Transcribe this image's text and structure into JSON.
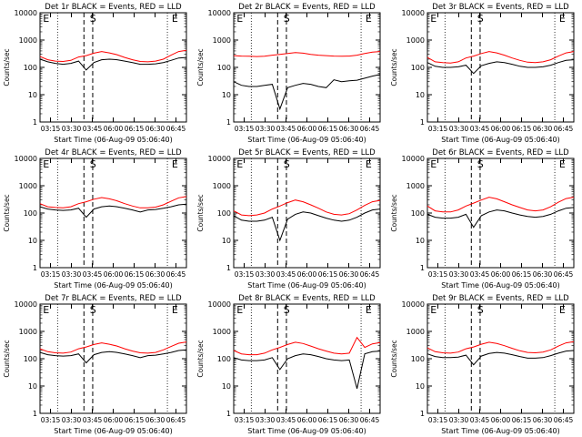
{
  "figure": {
    "xlabel": "Start Time (06-Aug-09 05:06:40)",
    "ylabel": "Counts/sec",
    "x_ticks": [
      "03:15",
      "03:30",
      "03:45",
      "06:00",
      "06:15",
      "06:30",
      "06:45"
    ],
    "y_ticks": [
      "1",
      "10",
      "100",
      "1000",
      "10000"
    ]
  },
  "chart_data": [
    {
      "type": "line",
      "title": "Det 1r BLACK = Events, RED = LLD",
      "scale": "log",
      "ylim": [
        1,
        10000
      ],
      "marks": [
        "E",
        "S",
        "E"
      ],
      "series": [
        {
          "color": "#000000",
          "values": [
            200,
            160,
            140,
            130,
            140,
            170,
            80,
            150,
            190,
            200,
            190,
            170,
            150,
            130,
            130,
            135,
            150,
            180,
            220,
            230
          ]
        },
        {
          "color": "#ff0000",
          "values": [
            250,
            190,
            170,
            165,
            180,
            240,
            270,
            330,
            380,
            340,
            290,
            230,
            190,
            165,
            160,
            170,
            200,
            280,
            380,
            420
          ]
        }
      ]
    },
    {
      "type": "line",
      "title": "Det 2r BLACK = Events, RED = LLD",
      "scale": "log",
      "ylim": [
        1,
        10000
      ],
      "marks": [
        "E",
        "S",
        "E"
      ],
      "series": [
        {
          "color": "#000000",
          "values": [
            30,
            22,
            20,
            20,
            22,
            24,
            3,
            18,
            22,
            26,
            24,
            20,
            18,
            35,
            30,
            32,
            34,
            40,
            48,
            55
          ]
        },
        {
          "color": "#ff0000",
          "values": [
            270,
            260,
            255,
            250,
            255,
            280,
            300,
            320,
            350,
            330,
            300,
            280,
            270,
            260,
            255,
            260,
            280,
            320,
            360,
            380
          ]
        }
      ]
    },
    {
      "type": "line",
      "title": "Det 3r BLACK = Events, RED = LLD",
      "scale": "log",
      "ylim": [
        1,
        10000
      ],
      "marks": [
        "E",
        "S",
        "E"
      ],
      "series": [
        {
          "color": "#000000",
          "values": [
            150,
            110,
            100,
            100,
            105,
            120,
            60,
            115,
            140,
            160,
            150,
            130,
            110,
            100,
            100,
            105,
            120,
            150,
            180,
            190
          ]
        },
        {
          "color": "#ff0000",
          "values": [
            230,
            160,
            150,
            145,
            160,
            220,
            260,
            320,
            380,
            340,
            280,
            220,
            180,
            155,
            150,
            160,
            190,
            260,
            340,
            380
          ]
        }
      ]
    },
    {
      "type": "line",
      "title": "Det 4r BLACK = Events, RED = LLD",
      "scale": "log",
      "ylim": [
        1,
        10000
      ],
      "marks": [
        "E",
        "S",
        "E"
      ],
      "series": [
        {
          "color": "#000000",
          "values": [
            170,
            140,
            130,
            125,
            130,
            150,
            70,
            140,
            170,
            180,
            170,
            150,
            130,
            110,
            130,
            135,
            150,
            170,
            200,
            210
          ]
        },
        {
          "color": "#ff0000",
          "values": [
            220,
            170,
            160,
            155,
            170,
            220,
            260,
            320,
            370,
            330,
            280,
            220,
            180,
            155,
            155,
            165,
            200,
            270,
            360,
            400
          ]
        }
      ]
    },
    {
      "type": "line",
      "title": "Det 5r BLACK = Events, RED = LLD",
      "scale": "log",
      "ylim": [
        1,
        10000
      ],
      "marks": [
        "E",
        "S",
        "E"
      ],
      "series": [
        {
          "color": "#000000",
          "values": [
            80,
            55,
            50,
            50,
            55,
            70,
            10,
            60,
            90,
            110,
            100,
            80,
            65,
            55,
            50,
            55,
            70,
            100,
            130,
            140
          ]
        },
        {
          "color": "#ff0000",
          "values": [
            120,
            85,
            80,
            85,
            100,
            140,
            180,
            240,
            300,
            260,
            200,
            150,
            110,
            90,
            85,
            95,
            130,
            190,
            260,
            290
          ]
        }
      ]
    },
    {
      "type": "line",
      "title": "Det 6r BLACK = Events, RED = LLD",
      "scale": "log",
      "ylim": [
        1,
        10000
      ],
      "marks": [
        "E",
        "S",
        "E"
      ],
      "series": [
        {
          "color": "#000000",
          "values": [
            90,
            70,
            65,
            65,
            70,
            90,
            30,
            80,
            110,
            130,
            120,
            100,
            85,
            75,
            70,
            75,
            90,
            120,
            150,
            160
          ]
        },
        {
          "color": "#ff0000",
          "values": [
            180,
            120,
            110,
            110,
            130,
            180,
            230,
            300,
            380,
            330,
            260,
            200,
            160,
            130,
            120,
            130,
            170,
            250,
            340,
            380
          ]
        }
      ]
    },
    {
      "type": "line",
      "title": "Det 7r BLACK = Events, RED = LLD",
      "scale": "log",
      "ylim": [
        1,
        10000
      ],
      "marks": [
        "E",
        "S",
        "E"
      ],
      "series": [
        {
          "color": "#000000",
          "values": [
            170,
            140,
            130,
            125,
            130,
            150,
            70,
            140,
            170,
            180,
            170,
            150,
            130,
            110,
            130,
            135,
            150,
            170,
            200,
            210
          ]
        },
        {
          "color": "#ff0000",
          "values": [
            230,
            180,
            165,
            160,
            175,
            230,
            270,
            330,
            380,
            340,
            290,
            230,
            190,
            165,
            160,
            170,
            210,
            280,
            370,
            410
          ]
        }
      ]
    },
    {
      "type": "line",
      "title": "Det 8r BLACK = Events, RED = LLD",
      "scale": "log",
      "ylim": [
        1,
        10000
      ],
      "marks": [
        "E",
        "S",
        "E"
      ],
      "series": [
        {
          "color": "#000000",
          "values": [
            110,
            90,
            85,
            85,
            90,
            110,
            40,
            100,
            130,
            150,
            140,
            120,
            100,
            90,
            85,
            90,
            8,
            150,
            180,
            190
          ]
        },
        {
          "color": "#ff0000",
          "values": [
            200,
            150,
            140,
            140,
            160,
            210,
            260,
            330,
            400,
            360,
            290,
            230,
            190,
            160,
            150,
            160,
            600,
            260,
            350,
            390
          ]
        }
      ]
    },
    {
      "type": "line",
      "title": "Det 9r BLACK = Events, RED = LLD",
      "scale": "log",
      "ylim": [
        1,
        10000
      ],
      "marks": [
        "E",
        "S",
        "E"
      ],
      "series": [
        {
          "color": "#000000",
          "values": [
            150,
            120,
            110,
            110,
            115,
            135,
            60,
            125,
            155,
            170,
            160,
            140,
            120,
            105,
            105,
            110,
            130,
            160,
            190,
            200
          ]
        },
        {
          "color": "#ff0000",
          "values": [
            250,
            180,
            165,
            160,
            175,
            230,
            270,
            340,
            400,
            360,
            300,
            240,
            195,
            170,
            165,
            175,
            210,
            290,
            380,
            420
          ]
        }
      ]
    }
  ]
}
